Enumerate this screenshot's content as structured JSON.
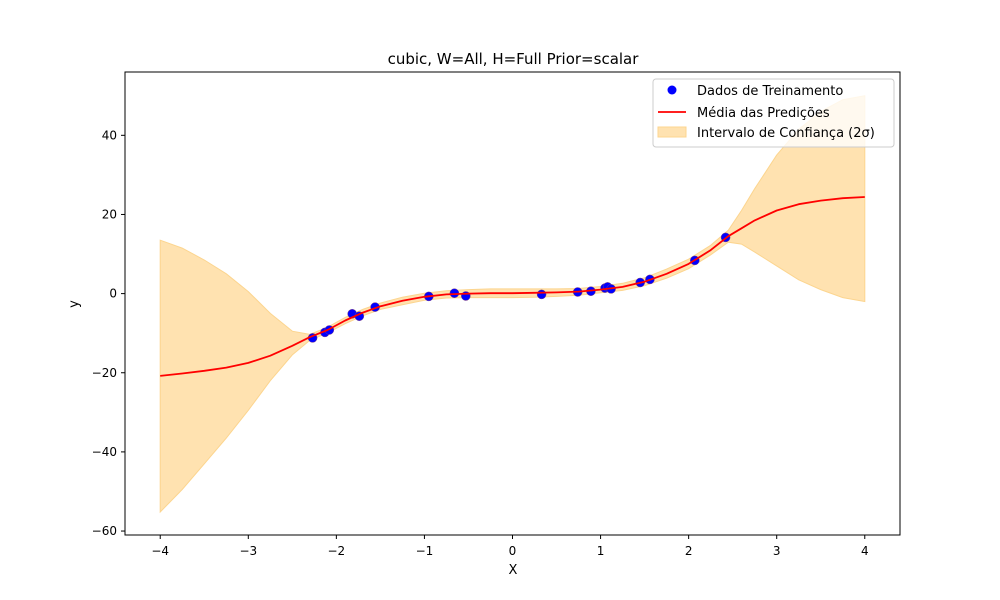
{
  "chart_data": {
    "type": "line",
    "title": "cubic, W=All, H=Full Prior=scalar",
    "xlabel": "X",
    "ylabel": "y",
    "xlim": [
      -4.4,
      4.4
    ],
    "ylim": [
      -61,
      56
    ],
    "xticks": [
      -4,
      -3,
      -2,
      -1,
      0,
      1,
      2,
      3,
      4
    ],
    "yticks": [
      -60,
      -40,
      -20,
      0,
      20,
      40
    ],
    "xtick_labels": [
      "−4",
      "−3",
      "−2",
      "−1",
      "0",
      "1",
      "2",
      "3",
      "4"
    ],
    "ytick_labels": [
      "−60",
      "−40",
      "−20",
      "0",
      "20",
      "40"
    ],
    "grid": false,
    "legend_position": "top-right",
    "legend": {
      "scatter_label": "Dados de Treinamento",
      "line_label": "Média das Predições",
      "band_label": "Intervalo de Confiança (2σ)"
    },
    "colors": {
      "scatter_fill": "#0000ff",
      "scatter_edge": "#7f3f7f",
      "mean_line": "#ff0000",
      "band_fill": "#ffe2b0",
      "band_edge": "#fcd58f"
    },
    "mean_curve": [
      {
        "x": -4.0,
        "y": -20.8,
        "lower": -55.2,
        "upper": 13.5
      },
      {
        "x": -3.75,
        "y": -20.2,
        "lower": -49.5,
        "upper": 11.5
      },
      {
        "x": -3.5,
        "y": -19.5,
        "lower": -43.0,
        "upper": 8.5
      },
      {
        "x": -3.25,
        "y": -18.7,
        "lower": -36.5,
        "upper": 5.0
      },
      {
        "x": -3.0,
        "y": -17.5,
        "lower": -29.5,
        "upper": 0.5
      },
      {
        "x": -2.75,
        "y": -15.7,
        "lower": -22.0,
        "upper": -5.0
      },
      {
        "x": -2.5,
        "y": -13.2,
        "lower": -15.5,
        "upper": -9.5
      },
      {
        "x": -2.3,
        "y": -11.0,
        "lower": -11.8,
        "upper": -10.3
      },
      {
        "x": -2.1,
        "y": -9.2,
        "lower": -9.9,
        "upper": -8.5
      },
      {
        "x": -1.9,
        "y": -6.8,
        "lower": -7.6,
        "upper": -6.0
      },
      {
        "x": -1.7,
        "y": -4.8,
        "lower": -5.6,
        "upper": -4.0
      },
      {
        "x": -1.5,
        "y": -3.2,
        "lower": -4.0,
        "upper": -2.4
      },
      {
        "x": -1.25,
        "y": -1.8,
        "lower": -2.8,
        "upper": -0.9
      },
      {
        "x": -1.0,
        "y": -0.8,
        "lower": -1.7,
        "upper": 0.1
      },
      {
        "x": -0.75,
        "y": -0.2,
        "lower": -1.1,
        "upper": 0.7
      },
      {
        "x": -0.5,
        "y": 0.0,
        "lower": -1.0,
        "upper": 1.0
      },
      {
        "x": -0.25,
        "y": 0.1,
        "lower": -1.0,
        "upper": 1.2
      },
      {
        "x": 0.0,
        "y": 0.1,
        "lower": -1.0,
        "upper": 1.2
      },
      {
        "x": 0.25,
        "y": 0.2,
        "lower": -0.9,
        "upper": 1.2
      },
      {
        "x": 0.5,
        "y": 0.3,
        "lower": -0.7,
        "upper": 1.2
      },
      {
        "x": 0.75,
        "y": 0.5,
        "lower": -0.4,
        "upper": 1.3
      },
      {
        "x": 1.0,
        "y": 1.0,
        "lower": 0.2,
        "upper": 1.8
      },
      {
        "x": 1.25,
        "y": 1.7,
        "lower": 0.8,
        "upper": 2.6
      },
      {
        "x": 1.5,
        "y": 3.0,
        "lower": 2.0,
        "upper": 4.0
      },
      {
        "x": 1.75,
        "y": 5.0,
        "lower": 3.9,
        "upper": 6.2
      },
      {
        "x": 2.0,
        "y": 7.5,
        "lower": 6.3,
        "upper": 8.7
      },
      {
        "x": 2.25,
        "y": 11.0,
        "lower": 9.8,
        "upper": 12.2
      },
      {
        "x": 2.45,
        "y": 14.5,
        "lower": 13.0,
        "upper": 16.0
      },
      {
        "x": 2.6,
        "y": 16.5,
        "lower": 12.5,
        "upper": 21.0
      },
      {
        "x": 2.75,
        "y": 18.5,
        "lower": 10.5,
        "upper": 26.5
      },
      {
        "x": 3.0,
        "y": 21.0,
        "lower": 7.0,
        "upper": 35.0
      },
      {
        "x": 3.25,
        "y": 22.6,
        "lower": 3.5,
        "upper": 41.5
      },
      {
        "x": 3.5,
        "y": 23.5,
        "lower": 1.0,
        "upper": 46.0
      },
      {
        "x": 3.75,
        "y": 24.1,
        "lower": -1.0,
        "upper": 49.0
      },
      {
        "x": 4.0,
        "y": 24.4,
        "lower": -2.0,
        "upper": 50.0
      }
    ],
    "training_points": [
      {
        "x": -2.27,
        "y": -11.2
      },
      {
        "x": -2.13,
        "y": -9.8
      },
      {
        "x": -2.08,
        "y": -9.2
      },
      {
        "x": -1.82,
        "y": -5.1
      },
      {
        "x": -1.74,
        "y": -5.7
      },
      {
        "x": -1.56,
        "y": -3.4
      },
      {
        "x": -0.95,
        "y": -0.7
      },
      {
        "x": -0.66,
        "y": 0.1
      },
      {
        "x": -0.53,
        "y": -0.6
      },
      {
        "x": 0.33,
        "y": -0.2
      },
      {
        "x": 0.74,
        "y": 0.4
      },
      {
        "x": 0.89,
        "y": 0.6
      },
      {
        "x": 1.05,
        "y": 1.4
      },
      {
        "x": 1.08,
        "y": 1.7
      },
      {
        "x": 1.12,
        "y": 1.2
      },
      {
        "x": 1.45,
        "y": 2.8
      },
      {
        "x": 1.56,
        "y": 3.6
      },
      {
        "x": 2.07,
        "y": 8.4
      },
      {
        "x": 2.42,
        "y": 14.2
      }
    ]
  }
}
